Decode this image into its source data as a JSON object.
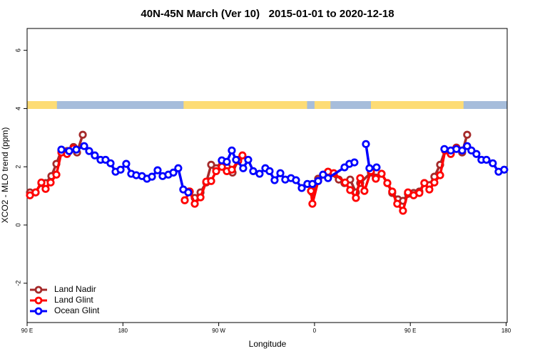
{
  "chart_data": {
    "type": "line",
    "title": "40N-45N March (Ver 10)   2015-01-01 to 2020-12-18",
    "xlabel": "Longitude",
    "ylabel": "XCO2 - MLO trend (ppm)",
    "xlim": [
      90,
      541
    ],
    "ylim": [
      -3.35,
      6.75
    ],
    "xticks": [
      {
        "value": 90,
        "label": "90 E"
      },
      180,
      {
        "value": 270,
        "label": "90 W"
      },
      {
        "value": 360,
        "label": "0"
      },
      {
        "value": 450,
        "label": "90 E"
      },
      {
        "value": 540,
        "label": "180"
      }
    ],
    "yticks": [
      -2,
      0,
      2,
      4,
      6
    ],
    "legend": "bottom-left",
    "land_color": "#fddc75",
    "ocean_color": "#a6bddb",
    "land_bands": [
      [
        90,
        118
      ],
      [
        237,
        353
      ],
      [
        360,
        375
      ],
      [
        413,
        500
      ]
    ],
    "series": [
      {
        "name": "Land Nadir",
        "color": "#a52a2a",
        "x": [
          92.7,
          98,
          103.4,
          107.4,
          112.8,
          117.5,
          122.2,
          127.5,
          133.6,
          136.9,
          142.3,
          null,
          242.1,
          247.5,
          252.9,
          258.3,
          262.9,
          267.6,
          273,
          277.6,
          283,
          288.3,
          null,
          358,
          363.4,
          372.7,
          382.8,
          388.1,
          393.5,
          398.9,
          402.9,
          413,
          417.6,
          423,
          428.4,
          433,
          438.4,
          443.1,
          447.8,
          453.1,
          458.5,
          463.2,
          467.9,
          472.6,
          478,
          482.7,
          488,
          493.3,
          498.7,
          503.4
        ],
        "values": [
          1.12,
          1.12,
          1.44,
          1.44,
          1.68,
          2.1,
          2.56,
          2.54,
          2.68,
          2.49,
          3.1,
          null,
          1.15,
          0.93,
          1.12,
          1.46,
          2.07,
          1.95,
          2.2,
          2.0,
          1.8,
          2.24,
          null,
          1.12,
          1.59,
          1.83,
          1.56,
          1.44,
          1.56,
          1.12,
          1.44,
          1.8,
          1.63,
          1.76,
          1.44,
          1.1,
          0.88,
          0.83,
          1.07,
          1.1,
          1.15,
          1.44,
          1.37,
          1.66,
          2.07,
          2.56,
          2.49,
          2.66,
          2.49,
          3.1
        ]
      },
      {
        "name": "Land Glint",
        "color": "#ff0000",
        "x": [
          92.7,
          98,
          103.4,
          107.4,
          112.1,
          117.5,
          122.2,
          127.5,
          133.6,
          null,
          238.1,
          242.8,
          247.5,
          252.9,
          258.3,
          262.9,
          267.6,
          273,
          277.6,
          282.3,
          288.3,
          292.3,
          null,
          356.7,
          358,
          363.4,
          372.7,
          378.1,
          388.8,
          393.5,
          398.9,
          402.9,
          406.9,
          413,
          417.6,
          423,
          428.4,
          433,
          437.7,
          443.1,
          447.8,
          453.1,
          458.5,
          463.2,
          467.9,
          472.6,
          478,
          482.7,
          488,
          493.3
        ],
        "values": [
          1.02,
          1.12,
          1.46,
          1.24,
          1.46,
          1.73,
          2.49,
          2.44,
          2.63,
          null,
          0.85,
          1.15,
          0.73,
          0.95,
          1.49,
          1.51,
          1.85,
          2.0,
          1.85,
          1.9,
          2.2,
          2.39,
          null,
          1.17,
          0.73,
          1.51,
          1.83,
          1.78,
          1.46,
          1.2,
          0.93,
          1.61,
          1.17,
          1.85,
          1.59,
          1.76,
          1.44,
          1.15,
          0.73,
          0.49,
          1.12,
          1.02,
          1.1,
          1.44,
          1.22,
          1.46,
          1.71,
          2.56,
          2.44,
          2.63
        ]
      },
      {
        "name": "Ocean Glint",
        "color": "#0000ff",
        "x": [
          122.2,
          129.5,
          136.2,
          143.6,
          148.3,
          153.6,
          159,
          163.7,
          168.4,
          173.1,
          177.8,
          183.1,
          187.8,
          192.5,
          197.9,
          202.6,
          207.3,
          212.6,
          217.3,
          222.7,
          227.4,
          232,
          236.7,
          241.4,
          null,
          272.9,
          277.6,
          282.3,
          286.3,
          293,
          297.7,
          302.4,
          308.4,
          313.8,
          317.8,
          322.5,
          327.9,
          332.5,
          337.9,
          342.6,
          348,
          353.3,
          358,
          363.4,
          368,
          372.7,
          388.2,
          392.8,
          397.5,
          null,
          408.3,
          411.6,
          418.3,
          null,
          482,
          488,
          493.3,
          498.7,
          503.4,
          507.4,
          512.1,
          516.8,
          521.5,
          527.5,
          532.9,
          538.2
        ],
        "values": [
          2.59,
          2.54,
          2.59,
          2.71,
          2.54,
          2.39,
          2.24,
          2.24,
          2.12,
          1.83,
          1.9,
          2.1,
          1.76,
          1.71,
          1.68,
          1.59,
          1.66,
          1.88,
          1.68,
          1.73,
          1.8,
          1.95,
          1.22,
          1.12,
          null,
          2.22,
          2.17,
          2.56,
          2.24,
          1.95,
          2.24,
          1.85,
          1.76,
          1.95,
          1.85,
          1.54,
          1.78,
          1.56,
          1.61,
          1.54,
          1.27,
          1.41,
          1.41,
          1.51,
          1.73,
          1.61,
          1.98,
          2.1,
          2.15,
          null,
          2.78,
          1.95,
          1.98,
          null,
          2.61,
          2.56,
          2.61,
          2.56,
          2.71,
          2.56,
          2.44,
          2.24,
          2.24,
          2.12,
          1.83,
          1.9
        ]
      }
    ]
  }
}
